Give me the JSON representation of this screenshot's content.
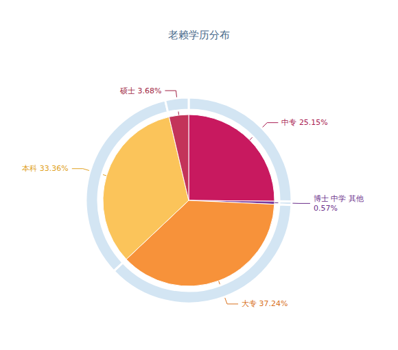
{
  "chart_data": {
    "type": "pie",
    "title": "老赖学历分布",
    "categories": [
      "中专",
      "博士 中学 其他",
      "大专",
      "本科",
      "硕士"
    ],
    "values": [
      25.15,
      0.57,
      37.24,
      33.36,
      3.68
    ],
    "value_labels": [
      "25.15%",
      "0.57%",
      "37.24%",
      "33.36%",
      "3.68%"
    ],
    "colors": [
      "#c8195f",
      "#7a3b9e",
      "#f7923a",
      "#fbc45a",
      "#c3345a"
    ],
    "data_labels": true
  }
}
